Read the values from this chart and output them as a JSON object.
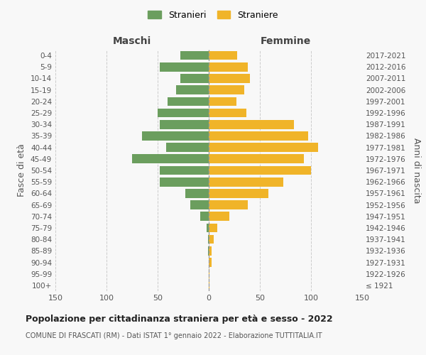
{
  "age_groups": [
    "100+",
    "95-99",
    "90-94",
    "85-89",
    "80-84",
    "75-79",
    "70-74",
    "65-69",
    "60-64",
    "55-59",
    "50-54",
    "45-49",
    "40-44",
    "35-39",
    "30-34",
    "25-29",
    "20-24",
    "15-19",
    "10-14",
    "5-9",
    "0-4"
  ],
  "birth_years": [
    "≤ 1921",
    "1922-1926",
    "1927-1931",
    "1932-1936",
    "1937-1941",
    "1942-1946",
    "1947-1951",
    "1952-1956",
    "1957-1961",
    "1962-1966",
    "1967-1971",
    "1972-1976",
    "1977-1981",
    "1982-1986",
    "1987-1991",
    "1992-1996",
    "1997-2001",
    "2002-2006",
    "2007-2011",
    "2012-2016",
    "2017-2021"
  ],
  "males": [
    0,
    0,
    0,
    1,
    1,
    2,
    8,
    18,
    23,
    48,
    48,
    75,
    42,
    65,
    48,
    50,
    40,
    32,
    28,
    48,
    28
  ],
  "females": [
    1,
    1,
    3,
    3,
    5,
    8,
    20,
    38,
    58,
    73,
    100,
    93,
    107,
    97,
    83,
    37,
    27,
    35,
    40,
    38,
    28
  ],
  "male_color": "#6b9e5e",
  "female_color": "#f0b429",
  "background_color": "#f8f8f8",
  "grid_color": "#cccccc",
  "title": "Popolazione per cittadinanza straniera per età e sesso - 2022",
  "subtitle": "COMUNE DI FRASCATI (RM) - Dati ISTAT 1° gennaio 2022 - Elaborazione TUTTITALIA.IT",
  "xlabel_left": "Maschi",
  "xlabel_right": "Femmine",
  "ylabel_left": "Fasce di età",
  "ylabel_right": "Anni di nascita",
  "legend_male": "Stranieri",
  "legend_female": "Straniere",
  "xlim": 150
}
